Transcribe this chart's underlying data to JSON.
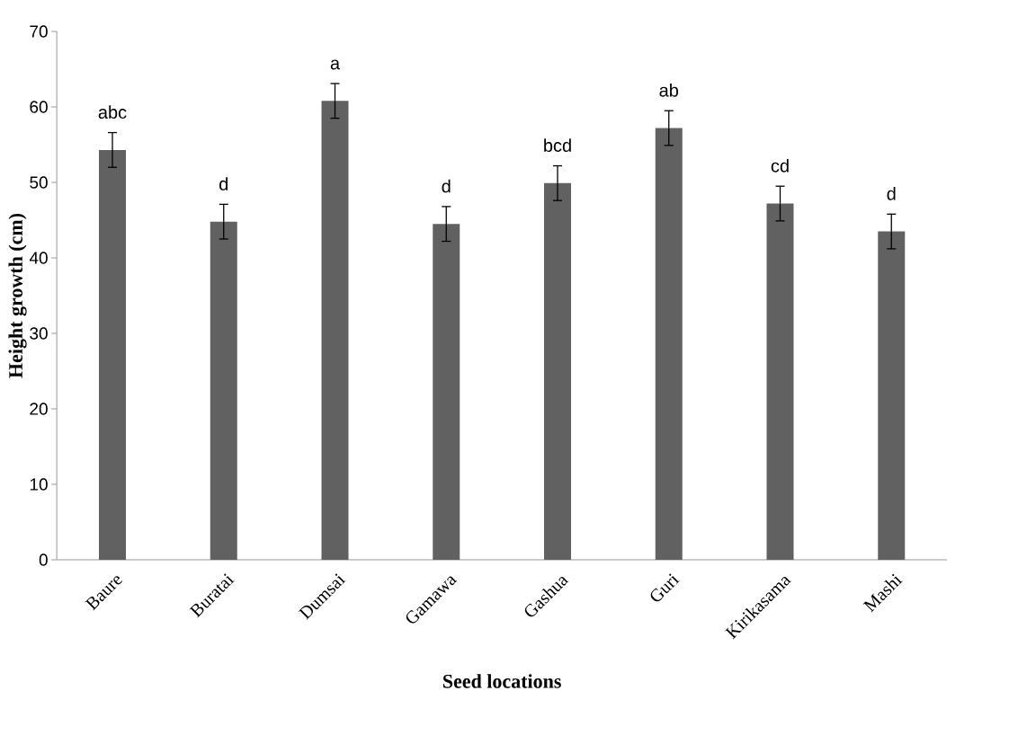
{
  "chart_data": {
    "type": "bar",
    "xlabel": "Seed locations",
    "ylabel": "Height growth (cm)",
    "categories": [
      "Baure",
      "Buratai",
      "Dumsai",
      "Gamawa",
      "Gashua",
      "Guri",
      "Kirikasama",
      "Mashi"
    ],
    "values": [
      54.3,
      44.8,
      60.8,
      44.5,
      49.9,
      57.2,
      47.2,
      43.5
    ],
    "errors": [
      2.3,
      2.3,
      2.3,
      2.3,
      2.3,
      2.3,
      2.3,
      2.3
    ],
    "color": "#616161",
    "ylim": [
      0,
      70
    ],
    "yticks": [
      0,
      10,
      20,
      30,
      40,
      50,
      60,
      70
    ],
    "annotations": [
      "abc",
      "d",
      "a",
      "d",
      "bcd",
      "ab",
      "cd",
      "d"
    ]
  }
}
